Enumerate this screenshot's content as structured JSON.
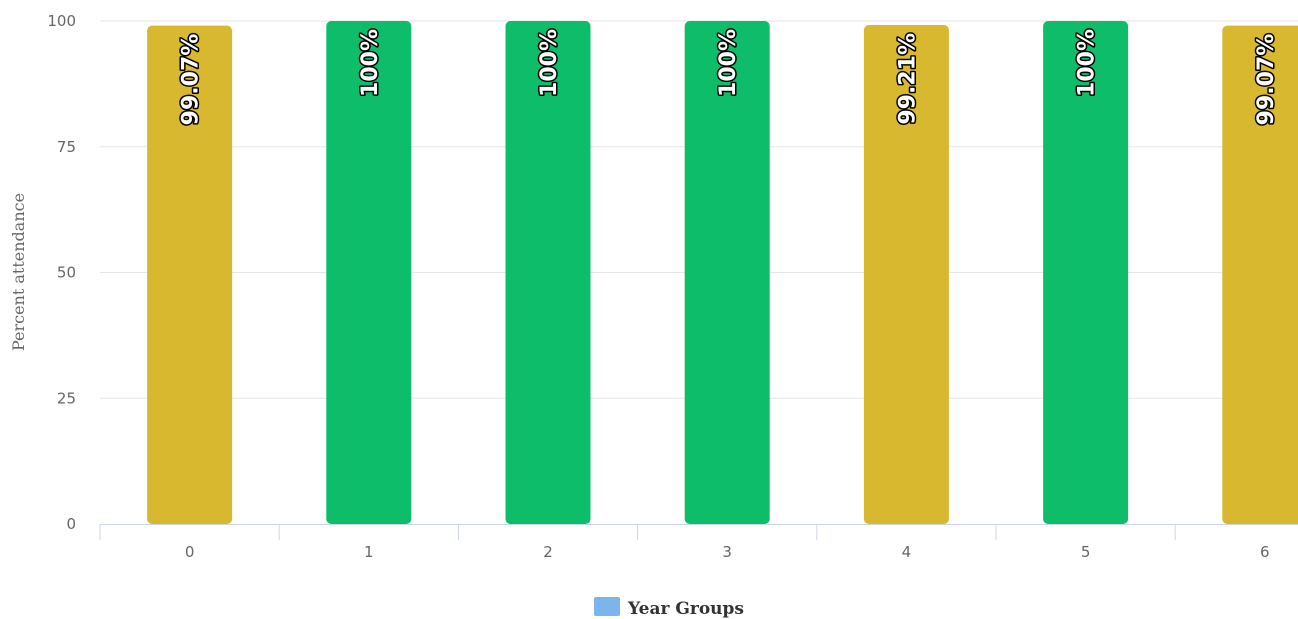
{
  "chart_data": {
    "type": "bar",
    "title": "",
    "xlabel": "",
    "ylabel": "Percent attendance",
    "ylim": [
      0,
      100
    ],
    "yticks": [
      "0",
      "25",
      "50",
      "75",
      "100"
    ],
    "categories": [
      "0",
      "1",
      "2",
      "3",
      "4",
      "5",
      "6"
    ],
    "series": [
      {
        "name": "Year Groups",
        "values": [
          99.07,
          100,
          100,
          100,
          99.21,
          100,
          99.07
        ],
        "labels": [
          "99.07%",
          "100%",
          "100%",
          "100%",
          "99.21%",
          "100%",
          "99.07%"
        ],
        "colors": [
          "#d8b82e",
          "#0dbd69",
          "#0dbd69",
          "#0dbd69",
          "#d8b82e",
          "#0dbd69",
          "#d8b82e"
        ]
      }
    ],
    "legend": {
      "position": "bottom-center",
      "color": "#7cb5ec",
      "label": "Year Groups"
    },
    "grid": true
  }
}
